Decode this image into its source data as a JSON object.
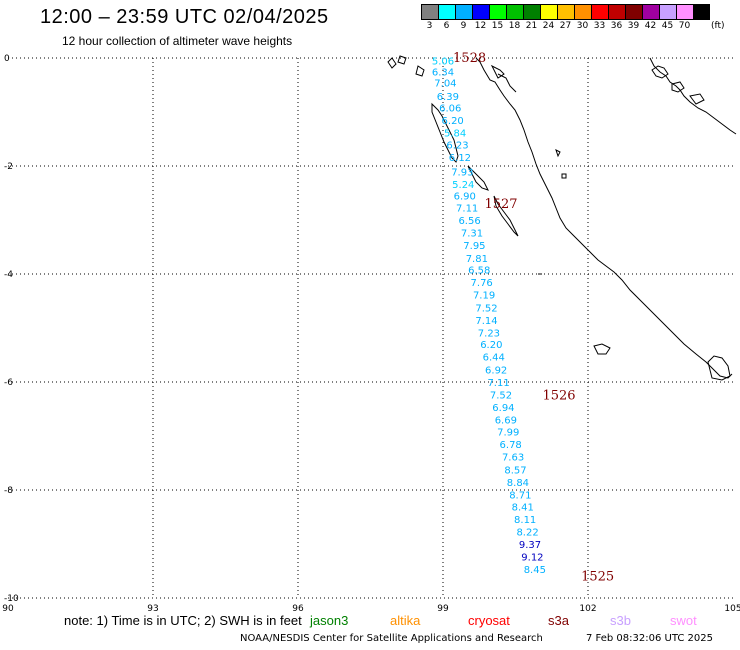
{
  "header": {
    "title": "12:00 – 23:59 UTC 02/04/2025",
    "subtitle": "12 hour collection of altimeter wave heights"
  },
  "color_scale": {
    "unit": "(ft)",
    "bins": [
      {
        "label": "3",
        "color": "#808080"
      },
      {
        "label": "6",
        "color": "#00ffff"
      },
      {
        "label": "9",
        "color": "#00b0ff"
      },
      {
        "label": "12",
        "color": "#0000ff"
      },
      {
        "label": "15",
        "color": "#00ff00"
      },
      {
        "label": "18",
        "color": "#00c000"
      },
      {
        "label": "21",
        "color": "#008000"
      },
      {
        "label": "24",
        "color": "#ffff00"
      },
      {
        "label": "27",
        "color": "#ffc000"
      },
      {
        "label": "30",
        "color": "#ff9000"
      },
      {
        "label": "33",
        "color": "#ff0000"
      },
      {
        "label": "36",
        "color": "#c00000"
      },
      {
        "label": "39",
        "color": "#800000"
      },
      {
        "label": "42",
        "color": "#a000a0"
      },
      {
        "label": "45",
        "color": "#c8a0ff"
      },
      {
        "label": "70",
        "color": "#ff90ff"
      },
      {
        "label": "",
        "color": "#000000"
      }
    ]
  },
  "map": {
    "lon_ticks": [
      "90",
      "93",
      "96",
      "99",
      "102",
      "105"
    ],
    "lat_ticks": [
      "0",
      "-2",
      "-4",
      "-6",
      "-8",
      "-10"
    ],
    "lon_range": [
      90,
      105
    ],
    "lat_range": [
      0,
      -10
    ],
    "observations": [
      {
        "lon": 99.0,
        "lat": -0.05,
        "value": "5.06",
        "color": "#00d0ff"
      },
      {
        "lon": 99.0,
        "lat": -0.25,
        "value": "6.34",
        "color": "#00b0ff"
      },
      {
        "lon": 99.05,
        "lat": -0.45,
        "value": "7.04",
        "color": "#00b0ff"
      },
      {
        "lon": 99.1,
        "lat": -0.7,
        "value": "6.39",
        "color": "#00b0ff"
      },
      {
        "lon": 99.15,
        "lat": -0.92,
        "value": "6.06",
        "color": "#00b0ff"
      },
      {
        "lon": 99.2,
        "lat": -1.15,
        "value": "6.20",
        "color": "#00b0ff"
      },
      {
        "lon": 99.25,
        "lat": -1.38,
        "value": "5.84",
        "color": "#00d0ff"
      },
      {
        "lon": 99.3,
        "lat": -1.6,
        "value": "6.23",
        "color": "#00b0ff"
      },
      {
        "lon": 99.35,
        "lat": -1.83,
        "value": "6.12",
        "color": "#00b0ff"
      },
      {
        "lon": 99.4,
        "lat": -2.1,
        "value": "7.93",
        "color": "#00b0ff"
      },
      {
        "lon": 99.42,
        "lat": -2.33,
        "value": "5.24",
        "color": "#00d0ff"
      },
      {
        "lon": 99.45,
        "lat": -2.55,
        "value": "6.90",
        "color": "#00b0ff"
      },
      {
        "lon": 99.5,
        "lat": -2.77,
        "value": "7.11",
        "color": "#00b0ff"
      },
      {
        "lon": 99.55,
        "lat": -3.0,
        "value": "6.56",
        "color": "#00b0ff"
      },
      {
        "lon": 99.6,
        "lat": -3.23,
        "value": "7.31",
        "color": "#00b0ff"
      },
      {
        "lon": 99.65,
        "lat": -3.46,
        "value": "7.95",
        "color": "#00b0ff"
      },
      {
        "lon": 99.7,
        "lat": -3.7,
        "value": "7.81",
        "color": "#00b0ff"
      },
      {
        "lon": 99.75,
        "lat": -3.92,
        "value": "6.58",
        "color": "#00b0ff"
      },
      {
        "lon": 99.8,
        "lat": -4.15,
        "value": "7.76",
        "color": "#00b0ff"
      },
      {
        "lon": 99.85,
        "lat": -4.38,
        "value": "7.19",
        "color": "#00b0ff"
      },
      {
        "lon": 99.9,
        "lat": -4.62,
        "value": "7.52",
        "color": "#00b0ff"
      },
      {
        "lon": 99.9,
        "lat": -4.85,
        "value": "7.14",
        "color": "#00b0ff"
      },
      {
        "lon": 99.95,
        "lat": -5.08,
        "value": "7.23",
        "color": "#00b0ff"
      },
      {
        "lon": 100.0,
        "lat": -5.3,
        "value": "6.20",
        "color": "#00b0ff"
      },
      {
        "lon": 100.05,
        "lat": -5.53,
        "value": "6.44",
        "color": "#00b0ff"
      },
      {
        "lon": 100.1,
        "lat": -5.77,
        "value": "6.92",
        "color": "#00b0ff"
      },
      {
        "lon": 100.15,
        "lat": -6.0,
        "value": "7.11",
        "color": "#00b0ff"
      },
      {
        "lon": 100.2,
        "lat": -6.23,
        "value": "7.52",
        "color": "#00b0ff"
      },
      {
        "lon": 100.25,
        "lat": -6.46,
        "value": "6.94",
        "color": "#00b0ff"
      },
      {
        "lon": 100.3,
        "lat": -6.69,
        "value": "6.69",
        "color": "#00b0ff"
      },
      {
        "lon": 100.35,
        "lat": -6.92,
        "value": "7.99",
        "color": "#00b0ff"
      },
      {
        "lon": 100.4,
        "lat": -7.15,
        "value": "6.78",
        "color": "#00b0ff"
      },
      {
        "lon": 100.45,
        "lat": -7.38,
        "value": "7.63",
        "color": "#00b0ff"
      },
      {
        "lon": 100.5,
        "lat": -7.62,
        "value": "8.57",
        "color": "#00b0ff"
      },
      {
        "lon": 100.55,
        "lat": -7.85,
        "value": "8.84",
        "color": "#00b0ff"
      },
      {
        "lon": 100.6,
        "lat": -8.08,
        "value": "8.71",
        "color": "#00b0ff"
      },
      {
        "lon": 100.65,
        "lat": -8.31,
        "value": "8.41",
        "color": "#00b0ff"
      },
      {
        "lon": 100.7,
        "lat": -8.54,
        "value": "8.11",
        "color": "#00b0ff"
      },
      {
        "lon": 100.75,
        "lat": -8.77,
        "value": "8.22",
        "color": "#00b0ff"
      },
      {
        "lon": 100.8,
        "lat": -9.0,
        "value": "9.37",
        "color": "#0000c0"
      },
      {
        "lon": 100.85,
        "lat": -9.23,
        "value": "9.12",
        "color": "#0000c0"
      },
      {
        "lon": 100.9,
        "lat": -9.46,
        "value": "8.45",
        "color": "#00b0ff"
      }
    ],
    "orbit_labels": [
      {
        "lon": 99.55,
        "lat": 0.0,
        "value": "1528",
        "color": "#800000"
      },
      {
        "lon": 100.2,
        "lat": -2.7,
        "value": "1527",
        "color": "#800000"
      },
      {
        "lon": 101.4,
        "lat": -6.25,
        "value": "1526",
        "color": "#800000"
      },
      {
        "lon": 102.2,
        "lat": -9.6,
        "value": "1525",
        "color": "#800000"
      }
    ]
  },
  "note": {
    "text": "note:  1) Time is in UTC; 2) SWH is in feet"
  },
  "satellites": [
    {
      "name": "jason3",
      "color": "#008000"
    },
    {
      "name": "altika",
      "color": "#ff9000"
    },
    {
      "name": "cryosat",
      "color": "#ff0000"
    },
    {
      "name": "s3a",
      "color": "#800000"
    },
    {
      "name": "s3b",
      "color": "#c8a0ff"
    },
    {
      "name": "swot",
      "color": "#ff90ff"
    }
  ],
  "footer": {
    "credit": "NOAA/NESDIS Center for Satellite Applications and Research",
    "timestamp": "7 Feb 08:32:06 UTC 2025"
  }
}
